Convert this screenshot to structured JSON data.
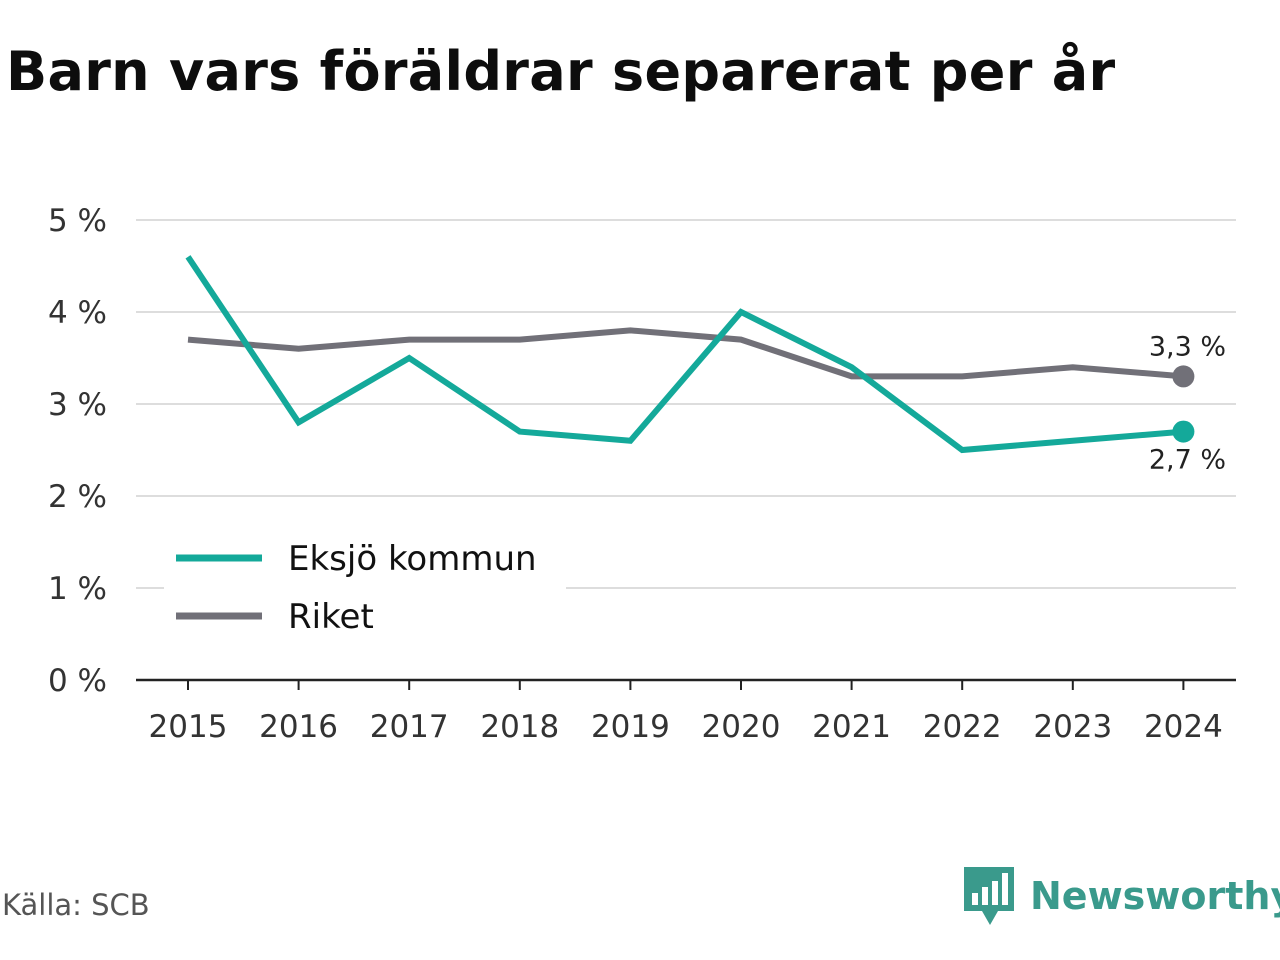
{
  "title": "Barn vars föräldrar separerat per år",
  "source": "Källa: SCB",
  "brand": "Newsworthy",
  "colors": {
    "Eksjö kommun": "#14a99a",
    "Riket": "#717078",
    "grid": "#dddddd",
    "axis": "#222222"
  },
  "chart_data": {
    "type": "line",
    "title": "Barn vars föräldrar separerat per år",
    "x": [
      "2015",
      "2016",
      "2017",
      "2018",
      "2019",
      "2020",
      "2021",
      "2022",
      "2023",
      "2024"
    ],
    "series": [
      {
        "name": "Eksjö kommun",
        "values": [
          4.6,
          2.8,
          3.5,
          2.7,
          2.6,
          4.0,
          3.4,
          2.5,
          2.6,
          2.7
        ],
        "end_label": "2,7 %"
      },
      {
        "name": "Riket",
        "values": [
          3.7,
          3.6,
          3.7,
          3.7,
          3.8,
          3.7,
          3.3,
          3.3,
          3.4,
          3.3
        ],
        "end_label": "3,3 %"
      }
    ],
    "y_ticks": [
      0,
      1,
      2,
      3,
      4,
      5
    ],
    "y_tick_labels": [
      "0 %",
      "1 %",
      "2 %",
      "3 %",
      "4 %",
      "5 %"
    ],
    "ylim": [
      0,
      5
    ],
    "grid": true,
    "legend_position": "bottom-left inside plot"
  }
}
